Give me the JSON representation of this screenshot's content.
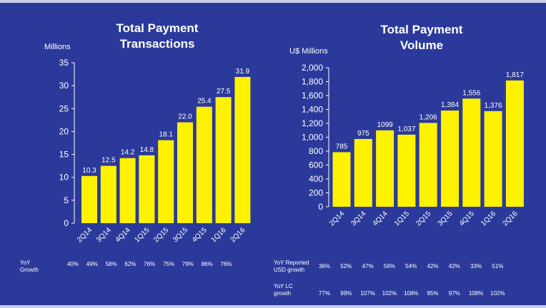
{
  "chart_data": [
    {
      "type": "bar",
      "title": "Total Payment Transactions",
      "ylabel": "Millions",
      "ylim": [
        0,
        35
      ],
      "yticks": [
        0,
        5,
        10,
        15,
        20,
        25,
        30,
        35
      ],
      "grid": false,
      "categories": [
        "2Q14",
        "3Q14",
        "4Q14",
        "1Q15",
        "2Q15",
        "3Q15",
        "4Q15",
        "1Q16",
        "2Q16"
      ],
      "values": [
        10.3,
        12.5,
        14.2,
        14.8,
        18.1,
        22.0,
        25.4,
        27.5,
        31.9
      ],
      "value_labels": [
        "10.3",
        "12.5",
        "14.2",
        "14.8",
        "18.1",
        "22.0",
        "25.4",
        "27.5",
        "31.9"
      ],
      "bar_color": "#fff200",
      "growth_rows": [
        {
          "label": "YoY Growth",
          "values": [
            "40%",
            "49%",
            "58%",
            "62%",
            "76%",
            "75%",
            "79%",
            "86%",
            "76%"
          ]
        }
      ]
    },
    {
      "type": "bar",
      "title": "Total Payment Volume",
      "ylabel": "U$ Millions",
      "ylim": [
        0,
        2000
      ],
      "yticks": [
        0,
        200,
        400,
        600,
        800,
        1000,
        1200,
        1400,
        1600,
        1800,
        2000
      ],
      "ytick_labels": [
        "0",
        "200",
        "400",
        "600",
        "800",
        "1,000",
        "1,200",
        "1,400",
        "1,600",
        "1,800",
        "2,000"
      ],
      "grid": false,
      "categories": [
        "2Q14",
        "3Q14",
        "4Q14",
        "1Q15",
        "2Q15",
        "3Q15",
        "4Q15",
        "1Q16",
        "2Q16"
      ],
      "values": [
        785,
        975,
        1099,
        1037,
        1206,
        1384,
        1556,
        1376,
        1817
      ],
      "value_labels": [
        "785",
        "975",
        "1099",
        "1,037",
        "1,206",
        "1,384",
        "1,556",
        "1,376",
        "1,817"
      ],
      "bar_color": "#fff200",
      "growth_rows": [
        {
          "label": "YoY Reported USD growth",
          "values": [
            "36%",
            "52%",
            "47%",
            "56%",
            "54%",
            "42%",
            "42%",
            "33%",
            "51%"
          ]
        },
        {
          "label": "YoY LC growth",
          "values": [
            "77%",
            "99%",
            "107%",
            "102%",
            "108%",
            "95%",
            "97%",
            "108%",
            "102%"
          ]
        }
      ]
    }
  ],
  "colors": {
    "background": "#2b3a9a",
    "bar": "#fff200",
    "text": "#ffffff"
  }
}
